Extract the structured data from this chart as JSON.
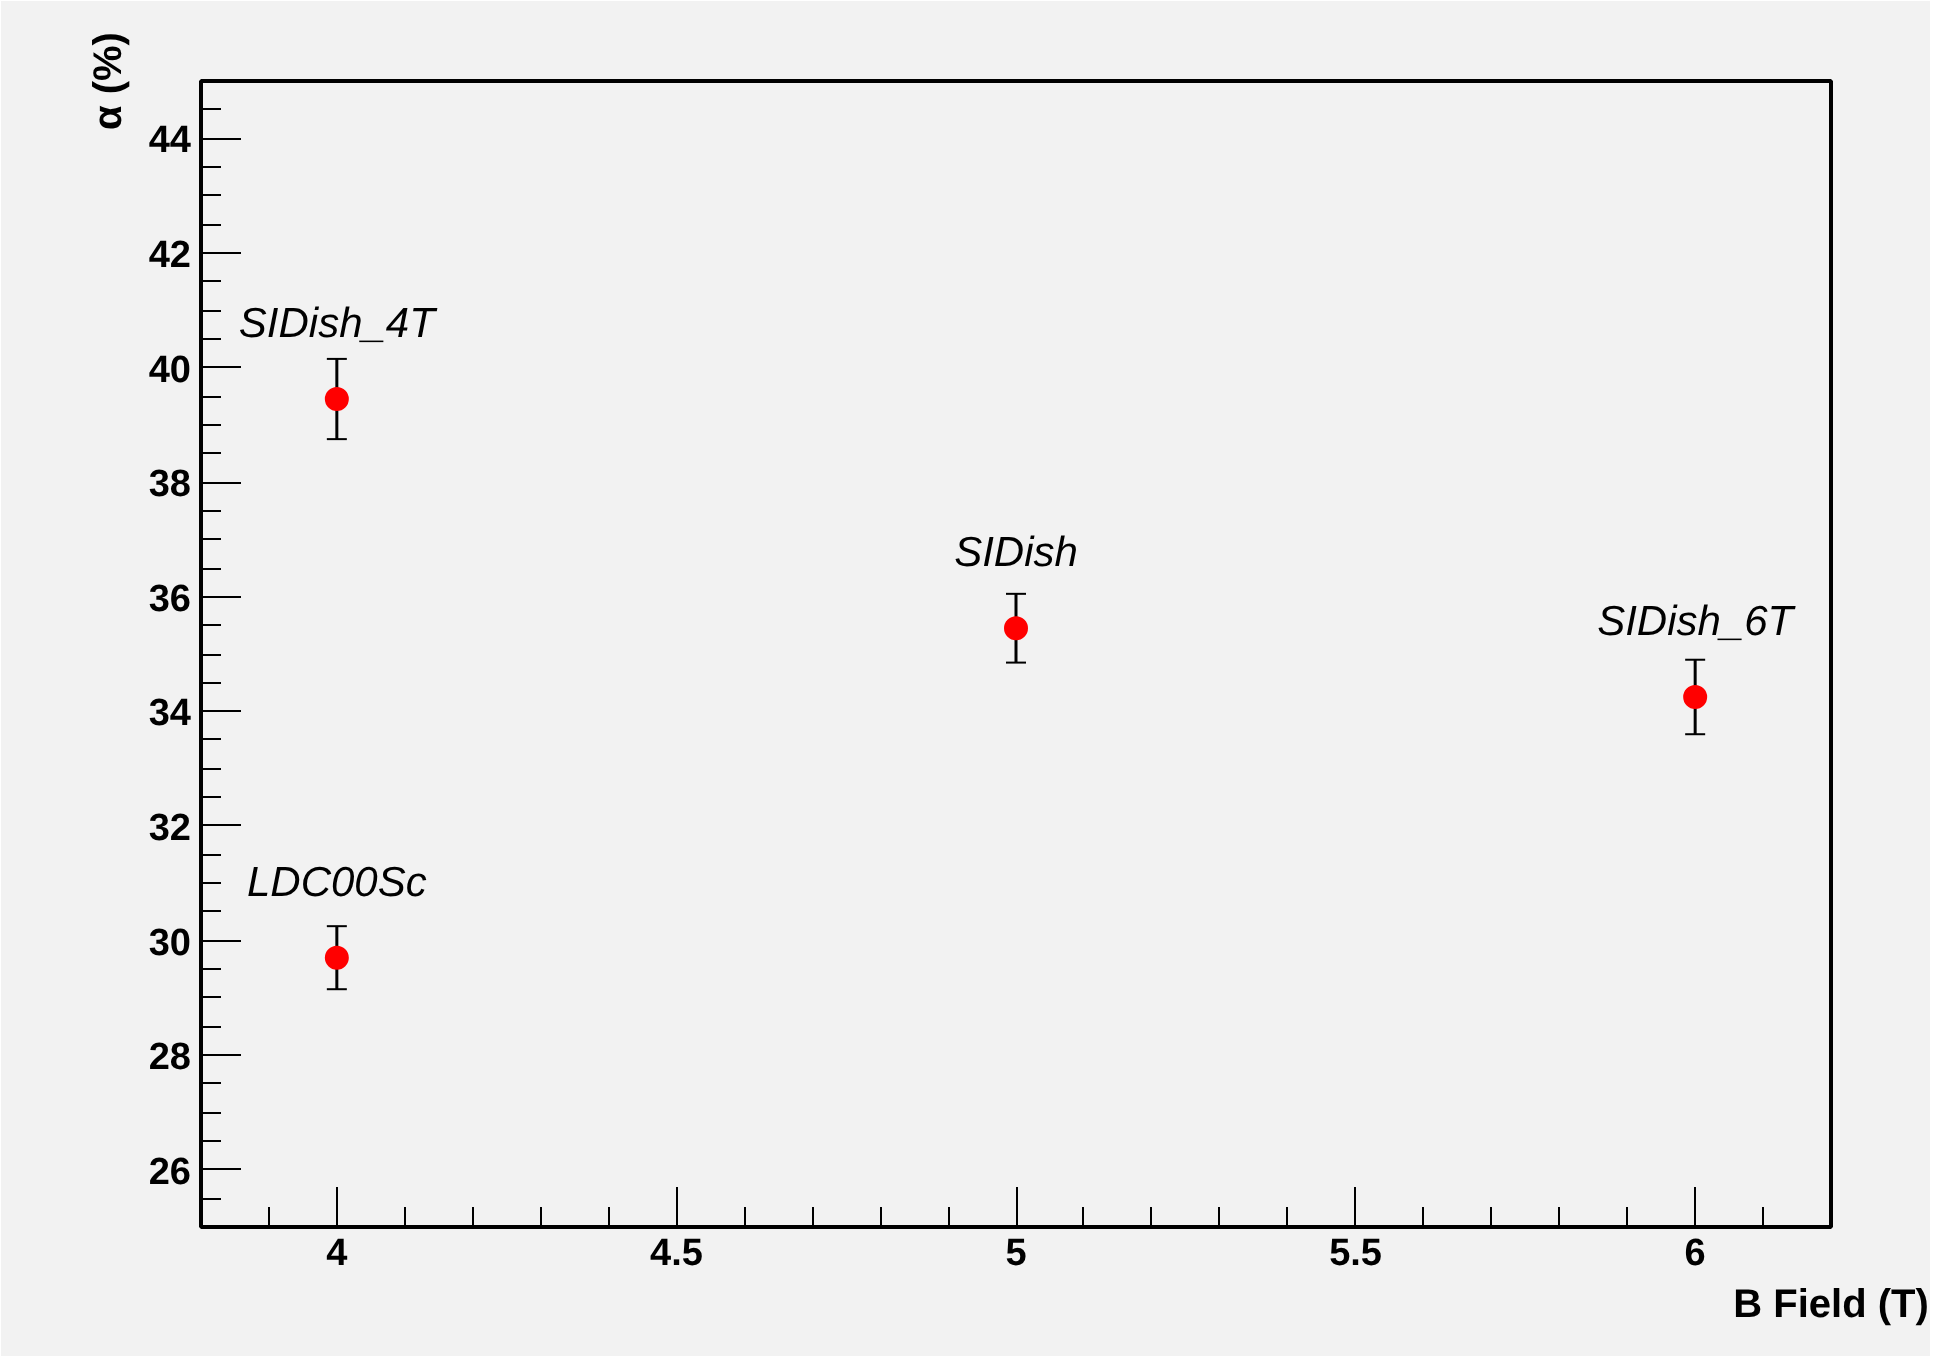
{
  "chart_data": {
    "type": "scatter",
    "xlabel": "B Field (T)",
    "ylabel": "α (%)",
    "x": [
      4,
      4,
      5,
      6
    ],
    "series": [
      {
        "color": "#ff0000",
        "values": [
          39.45,
          29.7,
          35.45,
          34.25
        ],
        "errors": [
          0.7,
          0.55,
          0.6,
          0.65
        ]
      }
    ],
    "annotations": [
      {
        "text": "SIDish_4T",
        "x": 4,
        "y": 39.45
      },
      {
        "text": "LDC00Sc",
        "x": 4,
        "y": 29.7
      },
      {
        "text": "SIDish",
        "x": 5,
        "y": 35.45
      },
      {
        "text": "SIDish_6T",
        "x": 6,
        "y": 34.25
      }
    ],
    "xlim": [
      3.8,
      6.2
    ],
    "ylim": [
      25,
      45
    ],
    "xticks": [
      4,
      4.5,
      5,
      5.5,
      6
    ],
    "yticks": [
      26,
      28,
      30,
      32,
      34,
      36,
      38,
      40,
      42,
      44
    ],
    "marker": "circle",
    "grid": false
  }
}
